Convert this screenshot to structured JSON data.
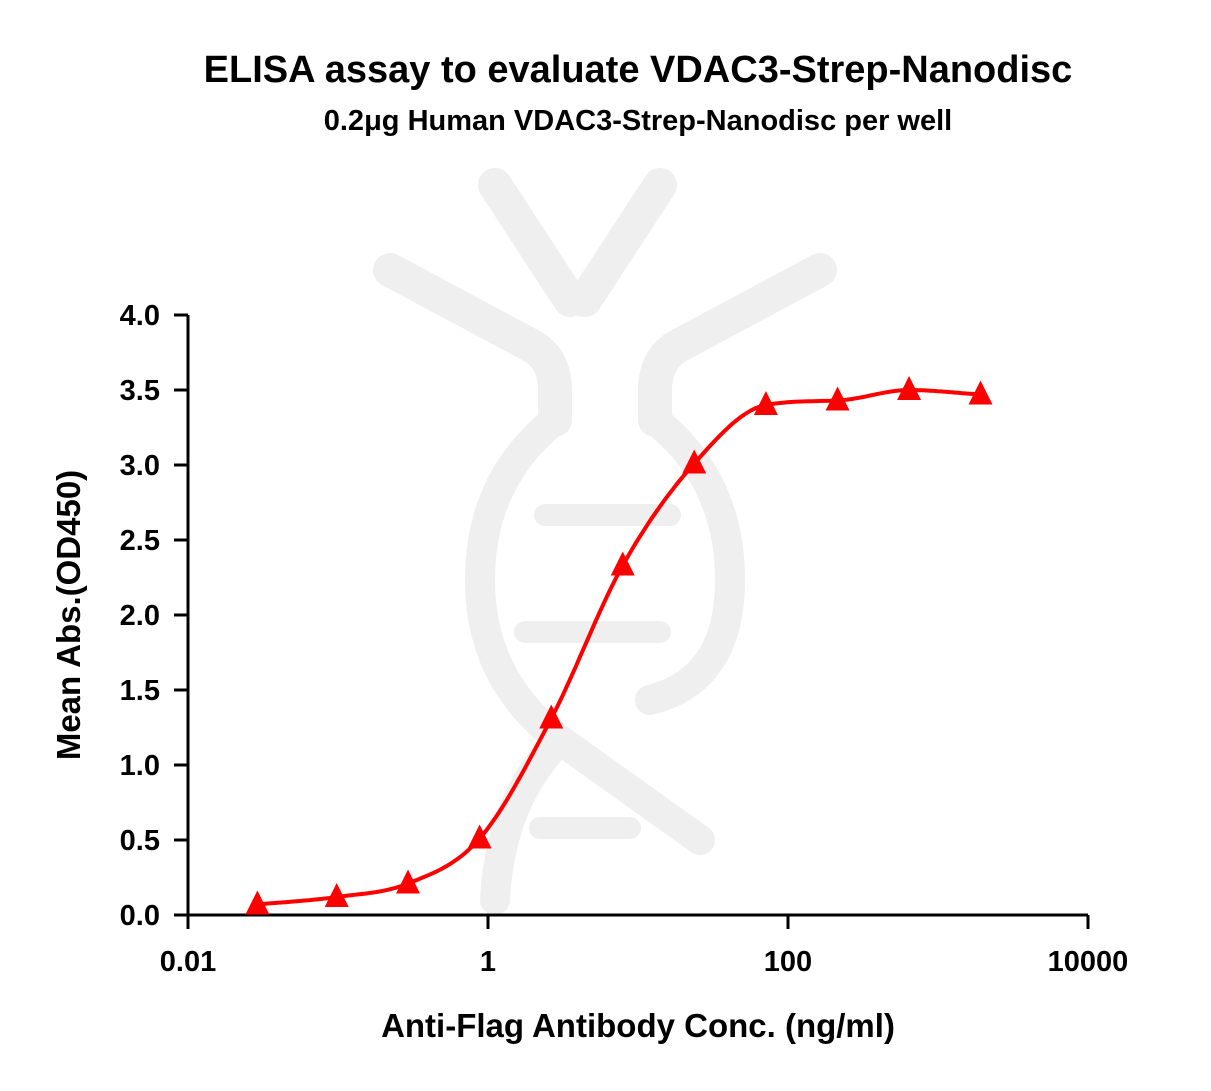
{
  "chart_data": {
    "type": "scatter",
    "title": "ELISA assay to evaluate VDAC3-Strep-Nanodisc",
    "subtitle": "0.2μg Human VDAC3-Strep-Nanodisc per well",
    "xlabel": "Anti-Flag Antibody Conc. (ng/ml)",
    "ylabel": "Mean Abs.(OD450)",
    "xscale": "log",
    "xlim": [
      0.01,
      10000
    ],
    "ylim": [
      0,
      4.0
    ],
    "x_ticks": [
      {
        "value": 0.01,
        "label": "0.01"
      },
      {
        "value": 1,
        "label": "1"
      },
      {
        "value": 100,
        "label": "100"
      },
      {
        "value": 10000,
        "label": "10000"
      }
    ],
    "y_ticks": [
      {
        "value": 0.0,
        "label": "0.0"
      },
      {
        "value": 0.5,
        "label": "0.5"
      },
      {
        "value": 1.0,
        "label": "1.0"
      },
      {
        "value": 1.5,
        "label": "1.5"
      },
      {
        "value": 2.0,
        "label": "2.0"
      },
      {
        "value": 2.5,
        "label": "2.5"
      },
      {
        "value": 3.0,
        "label": "3.0"
      },
      {
        "value": 3.5,
        "label": "3.5"
      },
      {
        "value": 4.0,
        "label": "4.0"
      }
    ],
    "grid": false,
    "series": [
      {
        "color": "#ff0000",
        "marker": "triangle",
        "fit": "four-parameter logistic curve",
        "x": [
          0.029,
          0.098,
          0.293,
          0.879,
          2.64,
          7.91,
          23.7,
          71.2,
          214,
          641,
          1920
        ],
        "y": [
          0.07,
          0.12,
          0.21,
          0.51,
          1.31,
          2.33,
          3.01,
          3.4,
          3.43,
          3.5,
          3.47
        ]
      }
    ]
  }
}
